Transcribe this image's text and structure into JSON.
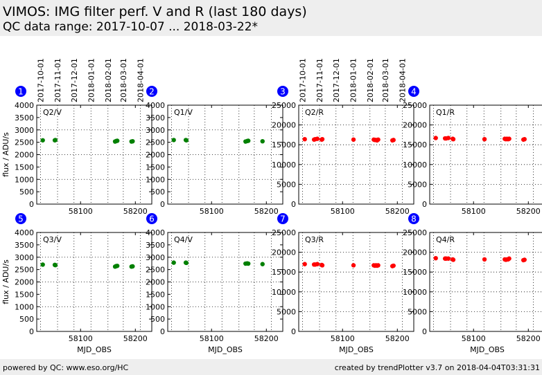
{
  "header": {
    "title": "VIMOS: IMG filter perf. V and R (last 180 days)",
    "subtitle": "QC data range: 2017-10-07 ... 2018-03-22*"
  },
  "footer": {
    "left": "powered by QC: www.eso.org/HC",
    "right": "created by trendPlotter v3.7 on 2018-04-04T03:31:31"
  },
  "colors": {
    "v_series": "#008000",
    "r_series": "#ff0000",
    "badge": "#0000ff"
  },
  "chart_data": {
    "common": {
      "type": "scatter",
      "xlabel": "MJD_OBS",
      "ylabel": "flux / ADU/s",
      "xlim": [
        58020,
        58230
      ],
      "x_ticks": [
        58100,
        58200
      ],
      "date_ticks": [
        {
          "mjd": 58027,
          "label": "2017-10-01"
        },
        {
          "mjd": 58058,
          "label": "2017-11-01"
        },
        {
          "mjd": 58088,
          "label": "2017-12-01"
        },
        {
          "mjd": 58119,
          "label": "2018-01-01"
        },
        {
          "mjd": 58150,
          "label": "2018-02-01"
        },
        {
          "mjd": 58178,
          "label": "2018-03-01"
        },
        {
          "mjd": 58209,
          "label": "2018-04-01"
        }
      ],
      "grid": true
    },
    "panels": [
      {
        "id": "1",
        "label": "Q2/V",
        "color": "#008000",
        "ylim": [
          0,
          4000
        ],
        "y_ticks": [
          0,
          500,
          1000,
          1500,
          2000,
          2500,
          3000,
          3500,
          4000
        ],
        "x": [
          58031,
          58053,
          58054,
          58163,
          58165,
          58167,
          58193,
          58195
        ],
        "y": [
          2580,
          2580,
          2590,
          2530,
          2550,
          2560,
          2530,
          2540
        ]
      },
      {
        "id": "2",
        "label": "Q1/V",
        "color": "#008000",
        "ylim": [
          0,
          4000
        ],
        "y_ticks": [
          0,
          500,
          1000,
          1500,
          2000,
          2500,
          3000,
          3500,
          4000
        ],
        "x": [
          58031,
          58053,
          58054,
          58162,
          58165,
          58167,
          58193
        ],
        "y": [
          2590,
          2590,
          2580,
          2530,
          2550,
          2560,
          2540
        ]
      },
      {
        "id": "3",
        "label": "Q2/R",
        "color": "#ff0000",
        "ylim": [
          0,
          25000
        ],
        "y_ticks": [
          0,
          5000,
          10000,
          15000,
          20000,
          25000
        ],
        "x": [
          58031,
          58048,
          58050,
          58054,
          58062,
          58063,
          58120,
          58157,
          58159,
          58161,
          58163,
          58165,
          58191,
          58193
        ],
        "y": [
          16400,
          16300,
          16400,
          16500,
          16300,
          16400,
          16300,
          16300,
          16200,
          16200,
          16100,
          16300,
          16100,
          16200
        ]
      },
      {
        "id": "4",
        "label": "Q1/R",
        "color": "#ff0000",
        "ylim": [
          0,
          25000
        ],
        "y_ticks": [
          0,
          5000,
          10000,
          15000,
          20000,
          25000
        ],
        "x": [
          58031,
          58048,
          58050,
          58054,
          58062,
          58063,
          58120,
          58157,
          58159,
          58161,
          58163,
          58165,
          58191,
          58193
        ],
        "y": [
          16700,
          16600,
          16600,
          16700,
          16500,
          16400,
          16400,
          16500,
          16400,
          16500,
          16400,
          16500,
          16300,
          16400
        ]
      },
      {
        "id": "5",
        "label": "Q3/V",
        "color": "#008000",
        "ylim": [
          0,
          4000
        ],
        "y_ticks": [
          0,
          500,
          1000,
          1500,
          2000,
          2500,
          3000,
          3500,
          4000
        ],
        "x": [
          58031,
          58053,
          58054,
          58163,
          58165,
          58167,
          58193,
          58195
        ],
        "y": [
          2700,
          2690,
          2680,
          2620,
          2640,
          2650,
          2620,
          2630
        ]
      },
      {
        "id": "6",
        "label": "Q4/V",
        "color": "#008000",
        "ylim": [
          0,
          4000
        ],
        "y_ticks": [
          0,
          500,
          1000,
          1500,
          2000,
          2500,
          3000,
          3500,
          4000
        ],
        "x": [
          58031,
          58053,
          58054,
          58162,
          58165,
          58167,
          58193
        ],
        "y": [
          2780,
          2780,
          2770,
          2740,
          2750,
          2740,
          2720
        ]
      },
      {
        "id": "7",
        "label": "Q3/R",
        "color": "#ff0000",
        "ylim": [
          0,
          25000
        ],
        "y_ticks": [
          0,
          5000,
          10000,
          15000,
          20000,
          25000
        ],
        "x": [
          58031,
          58048,
          58050,
          58054,
          58062,
          58063,
          58120,
          58157,
          58159,
          58161,
          58163,
          58165,
          58191,
          58193
        ],
        "y": [
          17000,
          16900,
          16900,
          17000,
          16800,
          16700,
          16700,
          16700,
          16600,
          16700,
          16600,
          16700,
          16500,
          16600
        ]
      },
      {
        "id": "8",
        "label": "Q4/R",
        "color": "#ff0000",
        "ylim": [
          0,
          25000
        ],
        "y_ticks": [
          0,
          5000,
          10000,
          15000,
          20000,
          25000
        ],
        "x": [
          58031,
          58048,
          58050,
          58054,
          58062,
          58063,
          58120,
          58157,
          58159,
          58161,
          58163,
          58165,
          58191,
          58193
        ],
        "y": [
          18500,
          18400,
          18400,
          18400,
          18200,
          18100,
          18200,
          18200,
          18100,
          18200,
          18200,
          18400,
          18000,
          18100
        ]
      }
    ]
  }
}
